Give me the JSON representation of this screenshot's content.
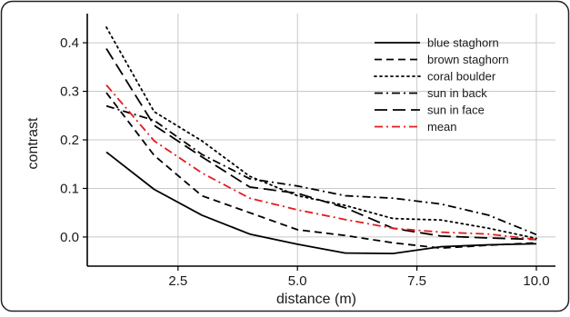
{
  "chart_data": {
    "type": "line",
    "title": "",
    "xlabel": "distance (m)",
    "ylabel": "contrast",
    "xlim": [
      0.6,
      10.4
    ],
    "ylim": [
      -0.06,
      0.46
    ],
    "x_ticks": [
      2.5,
      5.0,
      7.5,
      10.0
    ],
    "x_tick_labels": [
      "2.5",
      "5.0",
      "7.5",
      "10.0"
    ],
    "y_ticks": [
      0.0,
      0.1,
      0.2,
      0.3,
      0.4
    ],
    "y_tick_labels": [
      "0.0",
      "0.1",
      "0.2",
      "0.3",
      "0.4"
    ],
    "grid": true,
    "legend_position": "top-right",
    "x": [
      1,
      2,
      3,
      4,
      5,
      6,
      7,
      8,
      9,
      10
    ],
    "series": [
      {
        "name": "blue staghorn",
        "color": "#000000",
        "dash": "solid",
        "values": [
          0.175,
          0.098,
          0.045,
          0.006,
          -0.015,
          -0.033,
          -0.034,
          -0.02,
          -0.016,
          -0.014
        ]
      },
      {
        "name": "brown staghorn",
        "color": "#000000",
        "dash": "dashed",
        "values": [
          0.297,
          0.168,
          0.085,
          0.05,
          0.015,
          0.003,
          -0.012,
          -0.023,
          -0.017,
          -0.012
        ]
      },
      {
        "name": "coral boulder",
        "color": "#000000",
        "dash": "dotted",
        "values": [
          0.432,
          0.258,
          0.198,
          0.125,
          0.085,
          0.065,
          0.038,
          0.035,
          0.018,
          -0.003
        ]
      },
      {
        "name": "sun in back",
        "color": "#000000",
        "dash": "dashdot",
        "values": [
          0.27,
          0.24,
          0.17,
          0.12,
          0.105,
          0.085,
          0.08,
          0.068,
          0.045,
          0.005
        ]
      },
      {
        "name": "sun in face",
        "color": "#000000",
        "dash": "longdash",
        "values": [
          0.388,
          0.23,
          0.165,
          0.103,
          0.09,
          0.06,
          0.018,
          0.002,
          -0.002,
          -0.005
        ]
      },
      {
        "name": "mean",
        "color": "#e31a1c",
        "dash": "dashdot",
        "values": [
          0.313,
          0.198,
          0.132,
          0.08,
          0.056,
          0.036,
          0.018,
          0.01,
          0.006,
          -0.005
        ]
      }
    ]
  }
}
